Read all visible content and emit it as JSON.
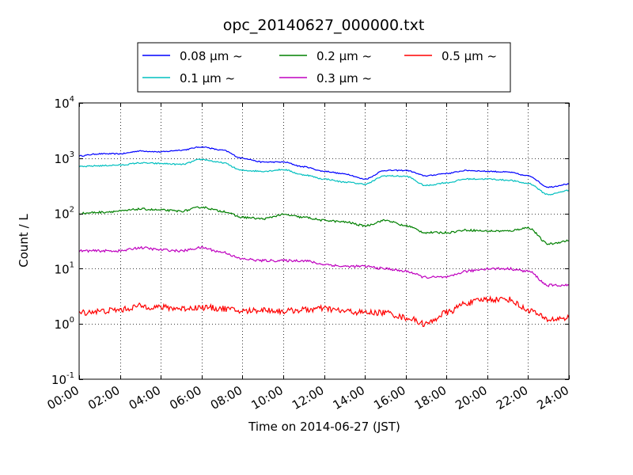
{
  "chart_data": {
    "type": "line",
    "title": "opc_20140627_000000.txt",
    "xlabel": "Time on 2014-06-27 (JST)",
    "ylabel": "Count / L",
    "x_unit": "time of day (JST, 2014-06-27)",
    "xlim": [
      "00:00",
      "24:00"
    ],
    "x_ticks": [
      "00:00",
      "02:00",
      "04:00",
      "06:00",
      "08:00",
      "10:00",
      "12:00",
      "14:00",
      "16:00",
      "18:00",
      "20:00",
      "22:00",
      "24:00"
    ],
    "yscale": "log",
    "ylim": [
      0.1,
      10000
    ],
    "y_ticks": [
      {
        "base": "10",
        "exp": "-1",
        "value": 0.1
      },
      {
        "base": "10",
        "exp": "0",
        "value": 1
      },
      {
        "base": "10",
        "exp": "1",
        "value": 10
      },
      {
        "base": "10",
        "exp": "2",
        "value": 100
      },
      {
        "base": "10",
        "exp": "3",
        "value": 1000
      },
      {
        "base": "10",
        "exp": "4",
        "value": 10000
      }
    ],
    "grid": true,
    "legend_position": "top-center (above axes)",
    "x": [
      "00:00",
      "01:00",
      "02:00",
      "03:00",
      "04:00",
      "05:00",
      "06:00",
      "07:00",
      "08:00",
      "09:00",
      "10:00",
      "11:00",
      "12:00",
      "13:00",
      "14:00",
      "15:00",
      "16:00",
      "17:00",
      "18:00",
      "19:00",
      "20:00",
      "21:00",
      "22:00",
      "23:00",
      "24:00"
    ],
    "series": [
      {
        "name": "0.08 μm ~",
        "color": "#0000ff",
        "values": [
          1100,
          1200,
          1200,
          1350,
          1300,
          1400,
          1600,
          1400,
          1000,
          850,
          850,
          700,
          580,
          520,
          420,
          600,
          600,
          480,
          530,
          600,
          580,
          560,
          480,
          300,
          340
        ]
      },
      {
        "name": "0.1 μm ~",
        "color": "#00bfbf",
        "values": [
          700,
          730,
          750,
          820,
          800,
          770,
          950,
          830,
          600,
          580,
          620,
          500,
          420,
          370,
          340,
          480,
          470,
          320,
          360,
          420,
          420,
          400,
          350,
          220,
          260
        ]
      },
      {
        "name": "0.2 μm ~",
        "color": "#008000",
        "values": [
          100,
          105,
          110,
          120,
          115,
          110,
          130,
          110,
          85,
          80,
          95,
          85,
          75,
          70,
          60,
          75,
          60,
          45,
          45,
          50,
          48,
          48,
          55,
          28,
          32
        ]
      },
      {
        "name": "0.3 μm ~",
        "color": "#bf00bf",
        "values": [
          21,
          21,
          21,
          24,
          22,
          21,
          24,
          20,
          15,
          14,
          14,
          14,
          12,
          11,
          11,
          10,
          9,
          7,
          7,
          9,
          10,
          10,
          9,
          5,
          5
        ]
      },
      {
        "name": "0.5 μm ~",
        "color": "#ff0000",
        "values": [
          1.6,
          1.7,
          1.8,
          2.1,
          2.0,
          1.9,
          2.0,
          1.9,
          1.7,
          1.8,
          1.7,
          1.8,
          1.9,
          1.7,
          1.6,
          1.6,
          1.3,
          1.0,
          1.6,
          2.4,
          2.8,
          2.8,
          1.8,
          1.2,
          1.3
        ]
      }
    ]
  }
}
